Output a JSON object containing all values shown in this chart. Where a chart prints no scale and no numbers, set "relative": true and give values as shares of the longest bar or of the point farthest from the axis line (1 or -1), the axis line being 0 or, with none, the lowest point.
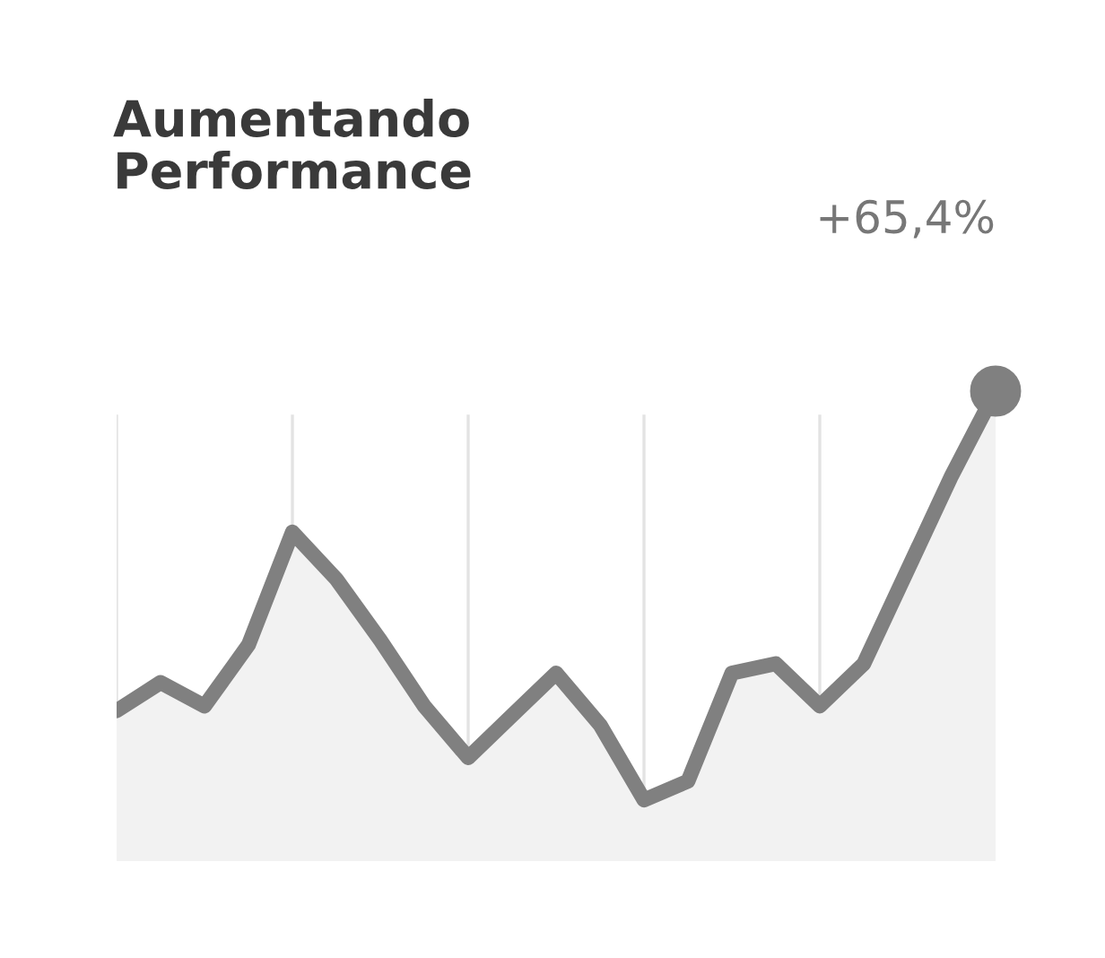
{
  "chart_data": {
    "type": "area",
    "title": "Aumentando\nPerformance",
    "annotations": [
      "+65,4%"
    ],
    "relative": true,
    "categories": [
      null,
      null,
      null,
      null,
      null,
      null,
      null,
      null,
      null,
      null,
      null,
      null,
      null,
      null,
      null,
      null,
      null,
      null,
      null,
      null,
      null
    ],
    "grid": "x",
    "series": [
      {
        "color": "#808080",
        "values": [
          0.32,
          0.38,
          0.33,
          0.46,
          0.7,
          0.6,
          0.47,
          0.33,
          0.22,
          0.31,
          0.4,
          0.29,
          0.13,
          0.17,
          0.4,
          0.42,
          0.33,
          0.42,
          0.62,
          0.82,
          1
        ]
      }
    ]
  }
}
